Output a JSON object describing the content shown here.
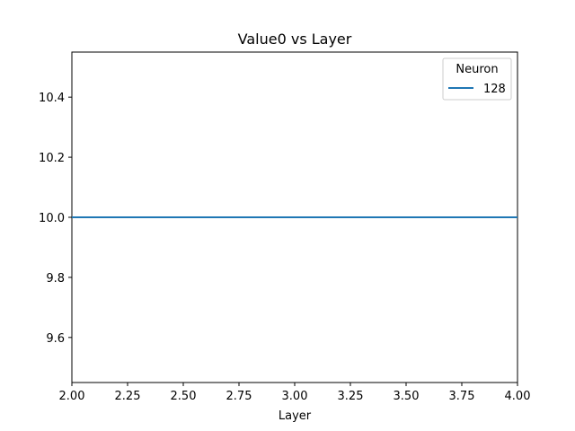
{
  "chart_data": {
    "type": "line",
    "title": "Value0 vs Layer",
    "xlabel": "Layer",
    "ylabel": "",
    "xlim": [
      2.0,
      4.0
    ],
    "ylim": [
      9.45,
      10.55
    ],
    "xticks": [
      "2.00",
      "2.25",
      "2.50",
      "2.75",
      "3.00",
      "3.25",
      "3.50",
      "3.75",
      "4.00"
    ],
    "yticks": [
      "9.6",
      "9.8",
      "10.0",
      "10.2",
      "10.4"
    ],
    "grid": false,
    "legend": {
      "title": "Neuron",
      "placement": "top-right"
    },
    "series": [
      {
        "name": "128",
        "color": "#1f77b4",
        "x": [
          2.0,
          4.0
        ],
        "y": [
          10.0,
          10.0
        ]
      }
    ]
  }
}
